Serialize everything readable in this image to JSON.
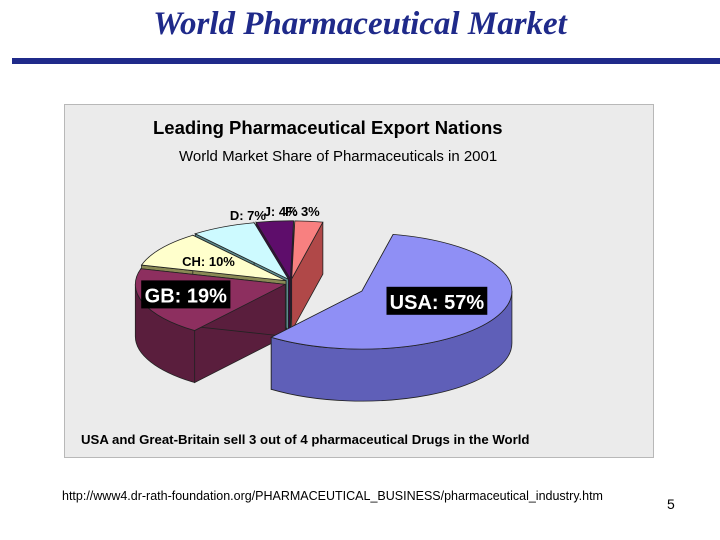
{
  "slide": {
    "title": "World Pharmaceutical Market",
    "source_url": "http://www4.dr-rath-foundation.org/PHARMACEUTICAL_BUSINESS/pharmaceutical_industry.htm",
    "number": "5"
  },
  "chart_data": {
    "type": "pie",
    "title": "Leading Pharmaceutical Export Nations",
    "subtitle": "World Market Share of Pharmaceuticals in 2001",
    "caption": "USA and Great-Britain sell 3 out of 4 pharmaceutical Drugs in the World",
    "three_d": true,
    "slices": [
      {
        "category": "USA",
        "value": 57,
        "label": "USA: 57%",
        "color": "#8f8ff5",
        "side_color": "#5f5fb8",
        "exploded": true
      },
      {
        "category": "GB",
        "value": 19,
        "label": "GB: 19%",
        "color": "#8d2f5f",
        "side_color": "#5a1e3d",
        "exploded": false
      },
      {
        "category": "CH",
        "value": 10,
        "label": "CH: 10%",
        "color": "#ffffcc",
        "side_color": "#8a8a55",
        "exploded": false
      },
      {
        "category": "D",
        "value": 7,
        "label": "D: 7%",
        "color": "#cdfaff",
        "side_color": "#5b8b8e",
        "exploded": false
      },
      {
        "category": "J",
        "value": 4,
        "label": "J: 4%",
        "color": "#5e0d6b",
        "side_color": "#3a0842",
        "exploded": false
      },
      {
        "category": "F",
        "value": 3,
        "label": "F: 3%",
        "color": "#f88080",
        "side_color": "#b04848",
        "exploded": false
      }
    ]
  }
}
